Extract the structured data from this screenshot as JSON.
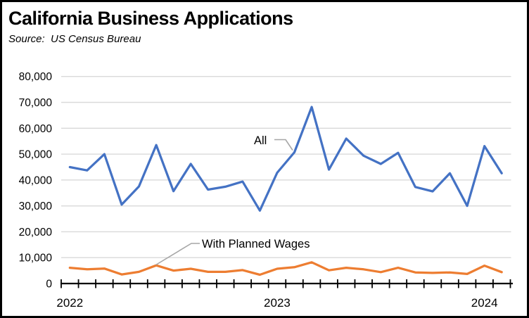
{
  "chart_data": {
    "type": "line",
    "title": "California Business Applications",
    "source": "Source:  US Census Bureau",
    "xlabel": "",
    "ylabel": "",
    "ylim": [
      0,
      80000
    ],
    "ytick_step": 10000,
    "grid": true,
    "legend_position": "none (inline series labels with leader lines)",
    "x": [
      "2022-01",
      "2022-02",
      "2022-03",
      "2022-04",
      "2022-05",
      "2022-06",
      "2022-07",
      "2022-08",
      "2022-09",
      "2022-10",
      "2022-11",
      "2022-12",
      "2023-01",
      "2023-02",
      "2023-03",
      "2023-04",
      "2023-05",
      "2023-06",
      "2023-07",
      "2023-08",
      "2023-09",
      "2023-10",
      "2023-11",
      "2023-12",
      "2024-01",
      "2024-02"
    ],
    "x_axis_year_labels": [
      "2022",
      "2023",
      "2024"
    ],
    "series": [
      {
        "name": "All",
        "color": "#4472C4",
        "values": [
          45000,
          43700,
          50000,
          30500,
          37500,
          53500,
          35700,
          46200,
          36300,
          37400,
          39400,
          28200,
          42800,
          50700,
          68200,
          44000,
          56000,
          49400,
          46200,
          50500,
          37300,
          35600,
          42600,
          30000,
          53100,
          42600
        ]
      },
      {
        "name": "With Planned Wages",
        "color": "#ED7D31",
        "values": [
          6100,
          5500,
          5800,
          3500,
          4500,
          7000,
          5000,
          5700,
          4500,
          4500,
          5200,
          3400,
          5700,
          6300,
          8200,
          5100,
          6100,
          5500,
          4400,
          6100,
          4300,
          4100,
          4300,
          3700,
          6900,
          4400
        ]
      }
    ],
    "annotations": [
      {
        "text": "All",
        "series": "All"
      },
      {
        "text": "With Planned Wages",
        "series": "With Planned Wages"
      }
    ],
    "colors": {
      "grid": "#D9D9D9",
      "axis": "#000000",
      "leader": "#A6A6A6",
      "text": "#000000",
      "border": "#000000",
      "background": "#FFFFFF"
    }
  }
}
